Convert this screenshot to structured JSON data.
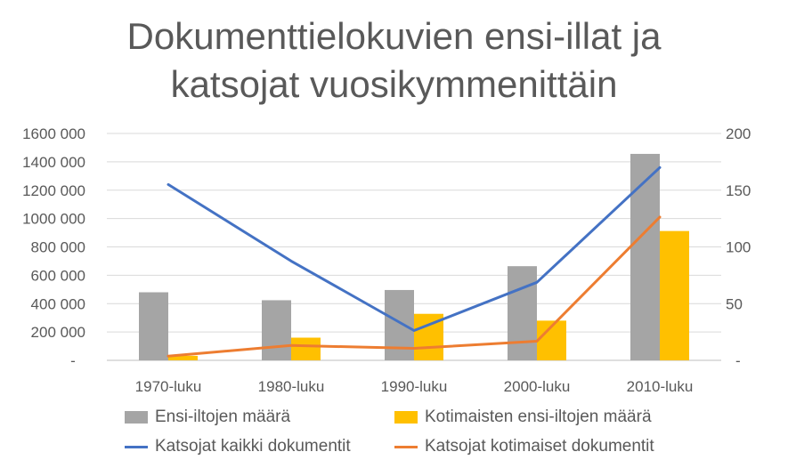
{
  "chart_data": {
    "type": "bar",
    "title_line1": "Dokumenttielokuvien ensi-illat ja",
    "title_line2": "katsojat vuosikymmenittäin",
    "categories": [
      "1970-luku",
      "1980-luku",
      "1990-luku",
      "2000-luku",
      "2010-luku"
    ],
    "y_left": {
      "ticks": [
        "-",
        "200 000",
        "400 000",
        "600 000",
        "800 000",
        "1000 000",
        "1200 000",
        "1400 000",
        "1600 000"
      ],
      "ylim": [
        0,
        1600000
      ]
    },
    "y_right": {
      "ticks": [
        "-",
        "50",
        "100",
        "150",
        "200"
      ],
      "ylim": [
        0,
        200
      ]
    },
    "grid": true,
    "legend_position": "bottom",
    "series": [
      {
        "name": "Ensi-iltojen määrä",
        "kind": "bar",
        "axis": "right",
        "color": "#a5a5a5",
        "values": [
          60,
          53,
          62,
          83,
          182
        ]
      },
      {
        "name": "Kotimaisten ensi-iltojen määrä",
        "kind": "bar",
        "axis": "right",
        "color": "#ffc000",
        "values": [
          4,
          20,
          41,
          35,
          114
        ]
      },
      {
        "name": "Katsojat kaikki dokumentit",
        "kind": "line",
        "axis": "left",
        "color": "#4472c4",
        "values": [
          1240000,
          700000,
          210000,
          550000,
          1360000
        ]
      },
      {
        "name": "Katsojat kotimaiset dokumentit",
        "kind": "line",
        "axis": "left",
        "color": "#ed7d31",
        "values": [
          30000,
          105000,
          85000,
          135000,
          1010000
        ]
      }
    ]
  }
}
